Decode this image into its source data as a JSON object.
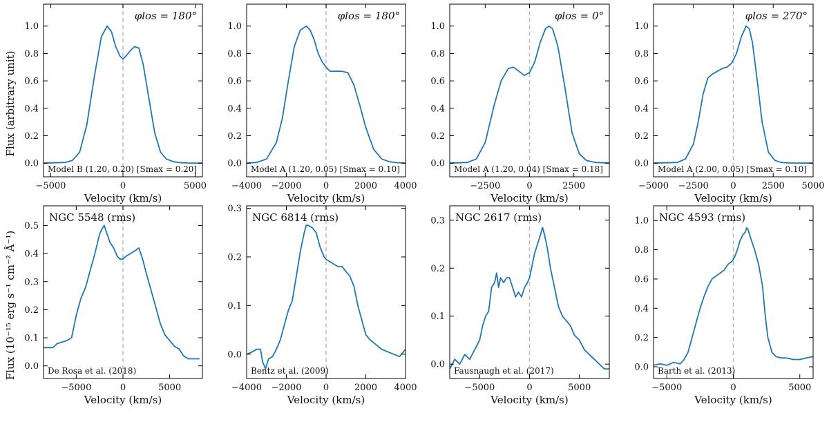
{
  "figure": {
    "xlabel": "Velocity (km/s)",
    "ylabel_top": "Flux (arbitrary unit)",
    "ylabel_bottom": "Flux (10⁻¹⁵ erg s⁻¹ cm⁻² Å⁻¹)",
    "line_color": "#1f77b4",
    "zero_line_color": "#bbbbbb"
  },
  "chart_data": [
    {
      "id": "model-b-180",
      "type": "line",
      "phi_label": "φlos = 180°",
      "note": "Model B (1.20, 0.20) [Smax = 0.20]",
      "xlim": [
        -5500,
        5500
      ],
      "ylim": [
        -0.1,
        1.16
      ],
      "xticks": [
        -5000,
        0,
        5000
      ],
      "xtick_labels": [
        "−5000",
        "0",
        "5000"
      ],
      "yticks": [
        0.0,
        0.2,
        0.4,
        0.6,
        0.8,
        1.0
      ],
      "ytick_labels": [
        "0.0",
        "0.2",
        "0.4",
        "0.6",
        "0.8",
        "1.0"
      ],
      "x": [
        -5500,
        -4000,
        -3500,
        -3000,
        -2500,
        -2000,
        -1500,
        -1100,
        -800,
        -500,
        -200,
        0,
        200,
        500,
        800,
        1100,
        1400,
        1800,
        2200,
        2600,
        3000,
        3500,
        4000,
        4500,
        5500
      ],
      "y": [
        0,
        0.005,
        0.02,
        0.08,
        0.28,
        0.62,
        0.92,
        1.0,
        0.96,
        0.85,
        0.78,
        0.76,
        0.78,
        0.82,
        0.85,
        0.84,
        0.72,
        0.47,
        0.22,
        0.08,
        0.03,
        0.01,
        0.003,
        0.001,
        0
      ]
    },
    {
      "id": "model-a-180",
      "type": "line",
      "phi_label": "φlos = 180°",
      "note": "Model A (1.20, 0.05) [Smax = 0.10]",
      "xlim": [
        -4000,
        4000
      ],
      "ylim": [
        -0.1,
        1.16
      ],
      "xticks": [
        -4000,
        -2000,
        0,
        2000,
        4000
      ],
      "xtick_labels": [
        "−4000",
        "−2000",
        "0",
        "2000",
        "4000"
      ],
      "yticks": [
        0.0,
        0.2,
        0.4,
        0.6,
        0.8,
        1.0
      ],
      "ytick_labels": [
        "0.0",
        "0.2",
        "0.4",
        "0.6",
        "0.8",
        "1.0"
      ],
      "x": [
        -4000,
        -3500,
        -3000,
        -2500,
        -2200,
        -1900,
        -1600,
        -1300,
        -1000,
        -800,
        -600,
        -400,
        -200,
        0,
        200,
        500,
        800,
        1100,
        1400,
        1700,
        2000,
        2400,
        2800,
        3200,
        3600,
        4000
      ],
      "y": [
        0,
        0.005,
        0.03,
        0.15,
        0.33,
        0.6,
        0.85,
        0.97,
        1.0,
        0.97,
        0.9,
        0.8,
        0.74,
        0.7,
        0.67,
        0.67,
        0.67,
        0.66,
        0.57,
        0.42,
        0.26,
        0.1,
        0.03,
        0.01,
        0.003,
        0
      ]
    },
    {
      "id": "model-a-0",
      "type": "line",
      "phi_label": "φlos = 0°",
      "note": "Model A (1.20, 0.04) [Smax = 0.18]",
      "xlim": [
        -4500,
        4500
      ],
      "ylim": [
        -0.1,
        1.16
      ],
      "xticks": [
        -2500,
        0,
        2500
      ],
      "xtick_labels": [
        "−2500",
        "0",
        "2500"
      ],
      "yticks": [
        0.0,
        0.2,
        0.4,
        0.6,
        0.8,
        1.0
      ],
      "ytick_labels": [
        "0.0",
        "0.2",
        "0.4",
        "0.6",
        "0.8",
        "1.0"
      ],
      "x": [
        -4500,
        -3500,
        -3000,
        -2500,
        -2000,
        -1600,
        -1200,
        -900,
        -600,
        -300,
        0,
        300,
        600,
        900,
        1100,
        1300,
        1600,
        2000,
        2400,
        2800,
        3200,
        3700,
        4500
      ],
      "y": [
        0,
        0.005,
        0.03,
        0.15,
        0.42,
        0.6,
        0.69,
        0.7,
        0.67,
        0.64,
        0.66,
        0.74,
        0.88,
        0.98,
        1.0,
        0.98,
        0.85,
        0.55,
        0.22,
        0.07,
        0.02,
        0.005,
        0
      ]
    },
    {
      "id": "model-a-270",
      "type": "line",
      "phi_label": "φlos = 270°",
      "note": "Model A (2.00, 0.05) [Smax = 0.10]",
      "xlim": [
        -5000,
        5000
      ],
      "ylim": [
        -0.1,
        1.16
      ],
      "xticks": [
        -5000,
        -2500,
        0,
        2500,
        5000
      ],
      "xtick_labels": [
        "−5000",
        "−2500",
        "0",
        "2500",
        "5000"
      ],
      "yticks": [
        0.0,
        0.2,
        0.4,
        0.6,
        0.8,
        1.0
      ],
      "ytick_labels": [
        "0.0",
        "0.2",
        "0.4",
        "0.6",
        "0.8",
        "1.0"
      ],
      "x": [
        -5000,
        -3500,
        -3000,
        -2500,
        -2200,
        -1900,
        -1600,
        -1300,
        -1000,
        -700,
        -400,
        -100,
        200,
        500,
        800,
        1000,
        1200,
        1500,
        1800,
        2200,
        2600,
        3000,
        3500,
        5000
      ],
      "y": [
        0,
        0.005,
        0.03,
        0.14,
        0.3,
        0.5,
        0.62,
        0.65,
        0.67,
        0.69,
        0.7,
        0.73,
        0.8,
        0.92,
        1.0,
        0.98,
        0.88,
        0.6,
        0.3,
        0.08,
        0.02,
        0.005,
        0.001,
        0
      ]
    },
    {
      "id": "ngc-5548",
      "type": "line",
      "title": "NGC 5548 (rms)",
      "note": "De Rosa et al. (2018)",
      "xlim": [
        -8500,
        8500
      ],
      "ylim": [
        -0.045,
        0.57
      ],
      "xticks": [
        -5000,
        0,
        5000
      ],
      "xtick_labels": [
        "−5000",
        "0",
        "5000"
      ],
      "yticks": [
        0.0,
        0.1,
        0.2,
        0.3,
        0.4,
        0.5
      ],
      "ytick_labels": [
        "0.0",
        "0.1",
        "0.2",
        "0.3",
        "0.4",
        "0.5"
      ],
      "x": [
        -8500,
        -7500,
        -7000,
        -6500,
        -6000,
        -5500,
        -5000,
        -4500,
        -4000,
        -3500,
        -3000,
        -2500,
        -2200,
        -2000,
        -1700,
        -1400,
        -1000,
        -600,
        -300,
        0,
        300,
        800,
        1300,
        1700,
        2100,
        2500,
        3000,
        3500,
        4000,
        4500,
        5000,
        5500,
        6000,
        6500,
        7000,
        7500,
        8200
      ],
      "y": [
        0.065,
        0.065,
        0.08,
        0.085,
        0.09,
        0.1,
        0.18,
        0.24,
        0.28,
        0.34,
        0.4,
        0.47,
        0.49,
        0.5,
        0.47,
        0.44,
        0.42,
        0.39,
        0.38,
        0.38,
        0.39,
        0.4,
        0.41,
        0.42,
        0.38,
        0.33,
        0.27,
        0.21,
        0.15,
        0.11,
        0.09,
        0.07,
        0.06,
        0.035,
        0.025,
        0.025,
        0.025
      ]
    },
    {
      "id": "ngc-6814",
      "type": "line",
      "title": "NGC 6814 (rms)",
      "note": "Bentz et al. (2009)",
      "xlim": [
        -4000,
        4000
      ],
      "ylim": [
        -0.05,
        0.305
      ],
      "xticks": [
        -4000,
        -2000,
        0,
        2000,
        4000
      ],
      "xtick_labels": [
        "−4000",
        "−2000",
        "0",
        "2000",
        "4000"
      ],
      "yticks": [
        0.0,
        0.1,
        0.2,
        0.3
      ],
      "ytick_labels": [
        "0.0",
        "0.1",
        "0.2",
        "0.3"
      ],
      "x": [
        -4000,
        -3700,
        -3500,
        -3300,
        -3200,
        -3050,
        -2900,
        -2700,
        -2500,
        -2300,
        -2100,
        -1900,
        -1700,
        -1500,
        -1300,
        -1100,
        -1000,
        -900,
        -700,
        -500,
        -300,
        -100,
        0,
        200,
        400,
        600,
        800,
        1000,
        1200,
        1400,
        1600,
        1800,
        2000,
        2200,
        2500,
        2800,
        3100,
        3400,
        3700,
        4000
      ],
      "y": [
        0.0,
        0.005,
        0.01,
        0.01,
        -0.015,
        -0.03,
        -0.01,
        -0.005,
        0.01,
        0.03,
        0.06,
        0.09,
        0.11,
        0.16,
        0.21,
        0.25,
        0.265,
        0.265,
        0.26,
        0.25,
        0.22,
        0.2,
        0.195,
        0.19,
        0.185,
        0.18,
        0.18,
        0.17,
        0.16,
        0.14,
        0.1,
        0.07,
        0.04,
        0.03,
        0.02,
        0.01,
        0.005,
        0.0,
        -0.005,
        0.01
      ]
    },
    {
      "id": "ngc-2617",
      "type": "line",
      "title": "NGC 2617 (rms)",
      "note": "Fausnaugh et al. (2017)",
      "xlim": [
        -8000,
        8000
      ],
      "ylim": [
        -0.03,
        0.33
      ],
      "xticks": [
        -5000,
        0,
        5000
      ],
      "xtick_labels": [
        "−5000",
        "0",
        "5000"
      ],
      "yticks": [
        0.0,
        0.1,
        0.2,
        0.3
      ],
      "ytick_labels": [
        "0.0",
        "0.1",
        "0.2",
        "0.3"
      ],
      "x": [
        -8000,
        -7500,
        -7000,
        -6500,
        -6000,
        -5500,
        -5000,
        -4700,
        -4400,
        -4100,
        -3800,
        -3500,
        -3300,
        -3100,
        -2900,
        -2600,
        -2300,
        -2000,
        -1700,
        -1400,
        -1100,
        -800,
        -500,
        -200,
        0,
        200,
        500,
        800,
        1100,
        1300,
        1500,
        1800,
        2100,
        2500,
        2900,
        3300,
        3700,
        4100,
        4500,
        5000,
        5500,
        6000,
        6500,
        7000,
        7500,
        8000
      ],
      "y": [
        -0.01,
        0.01,
        0.0,
        0.02,
        0.01,
        0.03,
        0.05,
        0.08,
        0.1,
        0.11,
        0.16,
        0.17,
        0.19,
        0.16,
        0.18,
        0.17,
        0.18,
        0.18,
        0.16,
        0.14,
        0.15,
        0.14,
        0.16,
        0.17,
        0.18,
        0.2,
        0.23,
        0.25,
        0.27,
        0.285,
        0.27,
        0.24,
        0.2,
        0.16,
        0.12,
        0.1,
        0.09,
        0.08,
        0.06,
        0.05,
        0.03,
        0.02,
        0.01,
        0.0,
        -0.01,
        -0.01
      ]
    },
    {
      "id": "ngc-4593",
      "type": "line",
      "title": "NGC 4593 (rms)",
      "note": "Barth et al. (2013)",
      "xlim": [
        -6000,
        6000
      ],
      "ylim": [
        -0.08,
        1.1
      ],
      "xticks": [
        -5000,
        0,
        5000
      ],
      "xtick_labels": [
        "−5000",
        "0",
        "5000"
      ],
      "yticks": [
        0.0,
        0.2,
        0.4,
        0.6,
        0.8,
        1.0
      ],
      "ytick_labels": [
        "0.0",
        "0.2",
        "0.4",
        "0.6",
        "0.8",
        "1.0"
      ],
      "x": [
        -6000,
        -5500,
        -5000,
        -4500,
        -4000,
        -3700,
        -3400,
        -3100,
        -2800,
        -2500,
        -2200,
        -1900,
        -1600,
        -1300,
        -1000,
        -700,
        -400,
        -100,
        100,
        300,
        500,
        700,
        900,
        1000,
        1100,
        1300,
        1600,
        1900,
        2200,
        2400,
        2600,
        2900,
        3200,
        3600,
        4000,
        4500,
        5000,
        5500,
        6000
      ],
      "y": [
        0.01,
        0.02,
        0.01,
        0.03,
        0.02,
        0.05,
        0.1,
        0.2,
        0.3,
        0.4,
        0.48,
        0.55,
        0.6,
        0.62,
        0.64,
        0.66,
        0.7,
        0.72,
        0.75,
        0.8,
        0.86,
        0.9,
        0.92,
        0.95,
        0.94,
        0.88,
        0.8,
        0.7,
        0.55,
        0.35,
        0.2,
        0.1,
        0.07,
        0.06,
        0.06,
        0.05,
        0.05,
        0.06,
        0.07
      ]
    }
  ]
}
